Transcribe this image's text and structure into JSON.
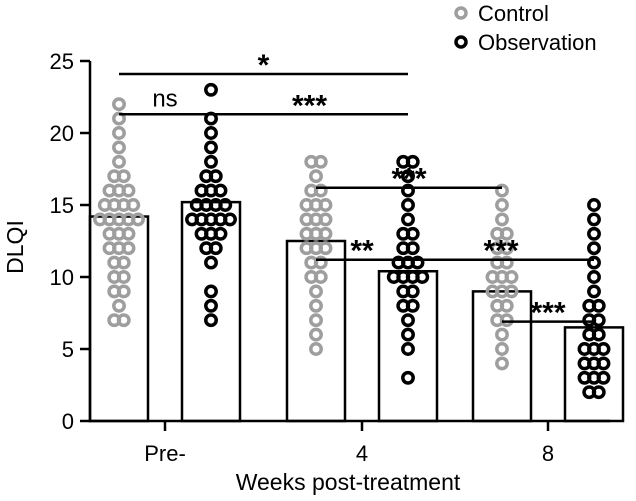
{
  "chart_data": {
    "type": "bar",
    "title": "",
    "xlabel": "Weeks post-treatment",
    "ylabel": "DLQI",
    "ylim": [
      0,
      25
    ],
    "yticks": [
      0,
      5,
      10,
      15,
      20,
      25
    ],
    "categories": [
      "Pre-",
      "4",
      "8"
    ],
    "series": [
      {
        "name": "Control",
        "color": "#9e9e9e",
        "marker": "open-circle",
        "values": [
          14.2,
          12.5,
          9.0
        ],
        "points": [
          [
            7,
            7,
            8,
            9,
            9,
            10,
            10,
            11,
            11,
            12,
            12,
            12,
            13,
            13,
            13,
            14,
            14,
            14,
            14,
            14,
            15,
            15,
            15,
            15,
            16,
            16,
            16,
            17,
            17,
            18,
            19,
            20,
            21,
            22
          ],
          [
            5,
            6,
            7,
            8,
            9,
            10,
            10,
            11,
            11,
            12,
            12,
            12,
            13,
            13,
            13,
            14,
            14,
            14,
            15,
            15,
            15,
            16,
            16,
            17,
            18,
            18
          ],
          [
            4,
            5,
            6,
            7,
            7,
            8,
            8,
            9,
            9,
            9,
            10,
            10,
            10,
            11,
            11,
            12,
            12,
            13,
            13,
            14,
            15,
            16
          ]
        ]
      },
      {
        "name": "Observation",
        "color": "#000000",
        "marker": "open-circle",
        "values": [
          15.2,
          10.4,
          6.5
        ],
        "points": [
          [
            7,
            8,
            9,
            11,
            12,
            12,
            13,
            13,
            13,
            14,
            14,
            14,
            14,
            14,
            15,
            15,
            15,
            15,
            16,
            16,
            16,
            17,
            17,
            18,
            19,
            20,
            21,
            23
          ],
          [
            3,
            5,
            6,
            7,
            8,
            8,
            9,
            9,
            10,
            10,
            10,
            10,
            11,
            11,
            11,
            12,
            12,
            13,
            13,
            14,
            15,
            16,
            17,
            18,
            18
          ],
          [
            2,
            2,
            3,
            3,
            3,
            4,
            4,
            4,
            5,
            5,
            5,
            6,
            6,
            7,
            7,
            8,
            8,
            9,
            10,
            11,
            12,
            13,
            14,
            15
          ]
        ]
      }
    ],
    "legend": {
      "position": "top-right",
      "entries": [
        "Control",
        "Observation"
      ]
    },
    "significance": [
      {
        "from": [
          0,
          0
        ],
        "to": [
          1,
          1
        ],
        "label": "*",
        "level": 24.1
      },
      {
        "from": [
          0,
          0
        ],
        "to": [
          0,
          1
        ],
        "label": "ns",
        "level": 21.3
      },
      {
        "from": [
          0,
          1
        ],
        "to": [
          1,
          1
        ],
        "label": "***",
        "level": 21.3
      },
      {
        "from": [
          1,
          0
        ],
        "to": [
          2,
          0
        ],
        "label": "***",
        "level": 16.2
      },
      {
        "from": [
          1,
          0
        ],
        "to": [
          1,
          1
        ],
        "label": "**",
        "level": 11.2
      },
      {
        "from": [
          1,
          1
        ],
        "to": [
          2,
          1
        ],
        "label": "***",
        "level": 11.2
      },
      {
        "from": [
          2,
          0
        ],
        "to": [
          2,
          1
        ],
        "label": "***",
        "level": 6.9
      }
    ]
  }
}
